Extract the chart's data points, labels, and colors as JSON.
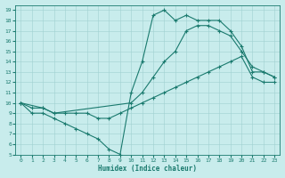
{
  "xlabel": "Humidex (Indice chaleur)",
  "bg_color": "#c8ecec",
  "line_color": "#1a7a6e",
  "xlim": [
    -0.5,
    23.5
  ],
  "ylim": [
    5,
    19.5
  ],
  "xticks": [
    0,
    1,
    2,
    3,
    4,
    5,
    6,
    7,
    8,
    9,
    10,
    11,
    12,
    13,
    14,
    15,
    16,
    17,
    18,
    19,
    20,
    21,
    22,
    23
  ],
  "yticks": [
    5,
    6,
    7,
    8,
    9,
    10,
    11,
    12,
    13,
    14,
    15,
    16,
    17,
    18,
    19
  ],
  "line1_x": [
    0,
    1,
    2,
    3,
    4,
    5,
    6,
    7,
    8,
    9,
    10,
    11,
    12,
    13,
    14,
    15,
    16,
    17,
    18,
    19,
    20,
    21,
    22,
    23
  ],
  "line1_y": [
    10,
    9,
    9,
    8.5,
    8,
    7.5,
    7,
    6.5,
    5.5,
    5,
    11,
    14,
    18.5,
    19,
    18,
    18.5,
    18,
    18,
    18,
    17,
    15.5,
    13,
    13,
    12.5
  ],
  "line2_x": [
    0,
    2,
    3,
    10,
    11,
    12,
    13,
    14,
    15,
    16,
    17,
    18,
    19,
    20,
    21,
    22,
    23
  ],
  "line2_y": [
    10,
    9.5,
    9,
    10,
    11,
    12.5,
    14,
    15,
    17,
    17.5,
    17.5,
    17,
    16.5,
    15,
    13.5,
    13,
    12.5
  ],
  "line3_x": [
    0,
    1,
    2,
    3,
    4,
    5,
    6,
    7,
    8,
    9,
    10,
    11,
    12,
    13,
    14,
    15,
    16,
    17,
    18,
    19,
    20,
    21,
    22,
    23
  ],
  "line3_y": [
    10,
    9.5,
    9.5,
    9,
    9,
    9,
    9,
    8.5,
    8.5,
    9,
    9.5,
    10,
    10.5,
    11,
    11.5,
    12,
    12.5,
    13,
    13.5,
    14,
    14.5,
    12.5,
    12,
    12
  ]
}
